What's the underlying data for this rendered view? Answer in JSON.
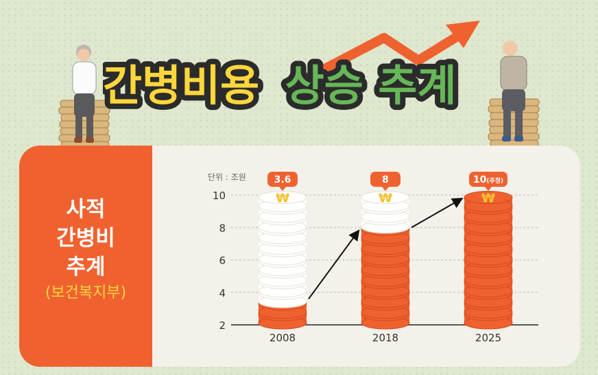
{
  "headline": {
    "part1": "간병비용",
    "part2": "상승 추계"
  },
  "sidebar": {
    "line1": "사적",
    "line2": "간병비",
    "line3": "추계",
    "source": "(보건복지부)"
  },
  "chart_data": {
    "type": "bar",
    "unit_label": "단위 : 조원",
    "categories": [
      "2008",
      "2018",
      "2025"
    ],
    "values": [
      3.6,
      8,
      10
    ],
    "value_labels": [
      "3.6",
      "8",
      "10"
    ],
    "value_label_notes": [
      "",
      "",
      "(추정)"
    ],
    "ylim": [
      2,
      10
    ],
    "yticks": [
      2,
      4,
      6,
      8,
      10
    ],
    "grid": true,
    "colors": {
      "bar": "#ef6230",
      "empty": "#ffffff",
      "label": "#ef6230",
      "coin_symbol": "#f2c230"
    }
  }
}
